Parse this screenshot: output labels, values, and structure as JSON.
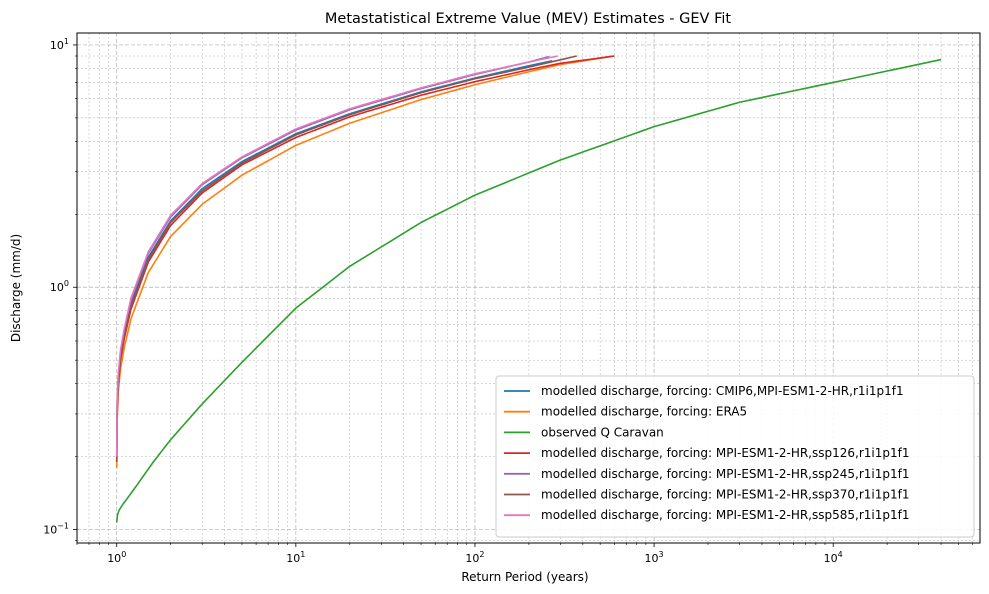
{
  "chart_data": {
    "type": "line",
    "title": "Metastatistical Extreme Value (MEV) Estimates - GEV Fit",
    "xlabel": "Return Period (years)",
    "ylabel": "Discharge (mm/d)",
    "xscale": "log",
    "yscale": "log",
    "xlim": [
      0.6,
      66000
    ],
    "ylim": [
      0.088,
      11.2
    ],
    "grid": true,
    "legend_location": "lower right",
    "x_ticks": [
      {
        "value": 1,
        "base": "10",
        "exp": "0"
      },
      {
        "value": 10,
        "base": "10",
        "exp": "1"
      },
      {
        "value": 100,
        "base": "10",
        "exp": "2"
      },
      {
        "value": 1000,
        "base": "10",
        "exp": "3"
      },
      {
        "value": 10000,
        "base": "10",
        "exp": "4"
      }
    ],
    "y_ticks": [
      {
        "value": 0.1,
        "base": "10",
        "exp": "−1"
      },
      {
        "value": 1,
        "base": "10",
        "exp": "0"
      },
      {
        "value": 10,
        "base": "10",
        "exp": "1"
      }
    ],
    "series": [
      {
        "name": "modelled discharge, forcing: CMIP6,MPI-ESM1-2-HR,r1i1p1f1",
        "color": "#1f77b4",
        "x": [
          1.0,
          1.005,
          1.02,
          1.05,
          1.1,
          1.2,
          1.5,
          2,
          3,
          5,
          10,
          20,
          50,
          100,
          200,
          270
        ],
        "y": [
          0.2,
          0.32,
          0.42,
          0.52,
          0.64,
          0.85,
          1.33,
          1.88,
          2.55,
          3.3,
          4.3,
          5.2,
          6.4,
          7.3,
          8.2,
          8.6
        ]
      },
      {
        "name": "modelled discharge, forcing: ERA5",
        "color": "#ff7f0e",
        "x": [
          1.0,
          1.005,
          1.02,
          1.05,
          1.1,
          1.2,
          1.5,
          2,
          3,
          5,
          10,
          20,
          50,
          100,
          200,
          300,
          600
        ],
        "y": [
          0.18,
          0.28,
          0.37,
          0.46,
          0.56,
          0.74,
          1.15,
          1.62,
          2.2,
          2.9,
          3.85,
          4.75,
          5.95,
          6.85,
          7.75,
          8.3,
          9.0
        ]
      },
      {
        "name": "observed Q Caravan",
        "color": "#2ca02c",
        "x": [
          1.0,
          1.01,
          1.03,
          1.08,
          1.15,
          1.3,
          1.6,
          2,
          3,
          5,
          10,
          20,
          50,
          100,
          300,
          1000,
          3000,
          10000,
          40000
        ],
        "y": [
          0.107,
          0.115,
          0.12,
          0.127,
          0.135,
          0.153,
          0.19,
          0.235,
          0.33,
          0.49,
          0.82,
          1.22,
          1.85,
          2.4,
          3.35,
          4.6,
          5.8,
          7.0,
          8.7
        ]
      },
      {
        "name": "modelled discharge, forcing: MPI-ESM1-2-HR,ssp126,r1i1p1f1",
        "color": "#d62728",
        "x": [
          1.0,
          1.005,
          1.02,
          1.05,
          1.1,
          1.2,
          1.5,
          2,
          3,
          5,
          10,
          20,
          50,
          100,
          200,
          300,
          600
        ],
        "y": [
          0.19,
          0.3,
          0.4,
          0.5,
          0.61,
          0.81,
          1.27,
          1.8,
          2.45,
          3.2,
          4.15,
          5.05,
          6.2,
          7.05,
          7.9,
          8.4,
          9.0
        ]
      },
      {
        "name": "modelled discharge, forcing: MPI-ESM1-2-HR,ssp245,r1i1p1f1",
        "color": "#9467bd",
        "x": [
          1.0,
          1.005,
          1.02,
          1.05,
          1.1,
          1.2,
          1.5,
          2,
          3,
          5,
          10,
          20,
          50,
          100,
          200,
          260
        ],
        "y": [
          0.2,
          0.33,
          0.43,
          0.54,
          0.66,
          0.88,
          1.38,
          1.95,
          2.65,
          3.42,
          4.45,
          5.4,
          6.6,
          7.55,
          8.5,
          8.95
        ]
      },
      {
        "name": "modelled discharge, forcing: MPI-ESM1-2-HR,ssp370,r1i1p1f1",
        "color": "#8c564b",
        "x": [
          1.0,
          1.005,
          1.02,
          1.05,
          1.1,
          1.2,
          1.5,
          2,
          3,
          5,
          10,
          20,
          50,
          100,
          200,
          370
        ],
        "y": [
          0.19,
          0.31,
          0.41,
          0.51,
          0.63,
          0.83,
          1.3,
          1.85,
          2.5,
          3.25,
          4.25,
          5.15,
          6.35,
          7.25,
          8.1,
          9.0
        ]
      },
      {
        "name": "modelled discharge, forcing: MPI-ESM1-2-HR,ssp585,r1i1p1f1",
        "color": "#e377c2",
        "x": [
          1.0,
          1.005,
          1.02,
          1.05,
          1.1,
          1.2,
          1.5,
          2,
          3,
          5,
          10,
          20,
          50,
          100,
          200,
          290
        ],
        "y": [
          0.2,
          0.34,
          0.44,
          0.55,
          0.67,
          0.9,
          1.4,
          1.98,
          2.68,
          3.45,
          4.5,
          5.45,
          6.65,
          7.6,
          8.5,
          9.0
        ]
      }
    ]
  }
}
